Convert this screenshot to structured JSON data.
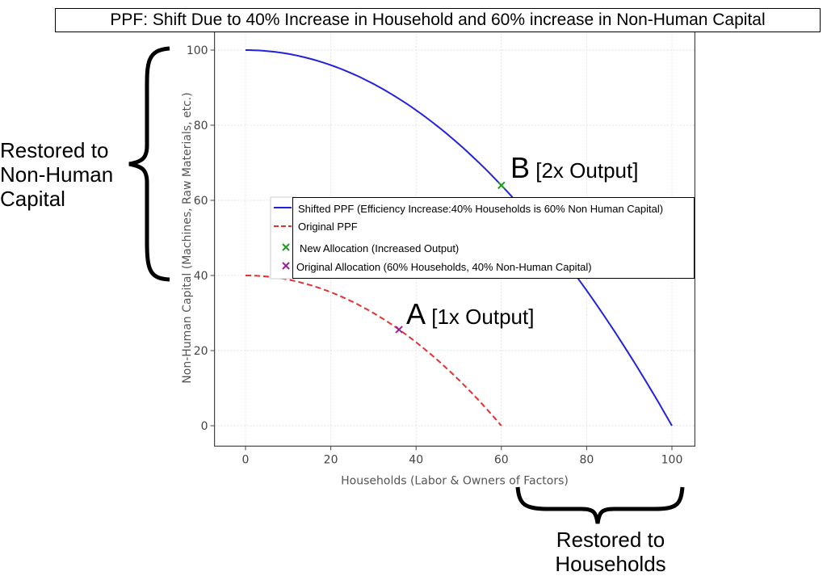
{
  "chart_data": {
    "type": "line",
    "title": "PPF: Shift Due to 40% Increase in Household and 60% increase in Non-Human Capital",
    "xlabel": "Households (Labor & Owners of Factors)",
    "ylabel": "Non-Human Capital (Machines, Raw Materials, etc.)",
    "xlim": [
      -5,
      105
    ],
    "ylim": [
      -5,
      105
    ],
    "xticks": [
      0,
      20,
      40,
      60,
      80,
      100
    ],
    "yticks": [
      0,
      20,
      40,
      60,
      80,
      100
    ],
    "grid": true,
    "legend_placement": "center-right",
    "series": [
      {
        "name": "Shifted PPF (Efficiency Increase:40% Households is 60% Non Human Capital)",
        "color": "#2222dd",
        "style": "solid",
        "x_max": 100,
        "y_max": 100,
        "form": "y = y_max * (1 - (x/x_max)^2)"
      },
      {
        "name": "Original PPF",
        "color": "#e53030",
        "style": "dashed",
        "x_max": 60,
        "y_max": 40,
        "form": "y = y_max * (1 - (x/x_max)^2)"
      }
    ],
    "points": [
      {
        "name": "New Allocation (Increased Output)",
        "x": 60,
        "y": 64,
        "color": "#229922",
        "marker": "x"
      },
      {
        "name": "Original Allocation (60% Households, 40% Non-Human Capital)",
        "x": 36,
        "y": 25.6,
        "color": "#992299",
        "marker": "x"
      }
    ],
    "annotations": {
      "b_letter": "B",
      "b_text": "[2x Output]",
      "a_letter": "A",
      "a_text": "[1x Output]",
      "left_note_1": "Restored to",
      "left_note_2": "Non-Human",
      "left_note_3": "Capital",
      "bottom_note_1": "Restored to",
      "bottom_note_2": "Households"
    }
  }
}
